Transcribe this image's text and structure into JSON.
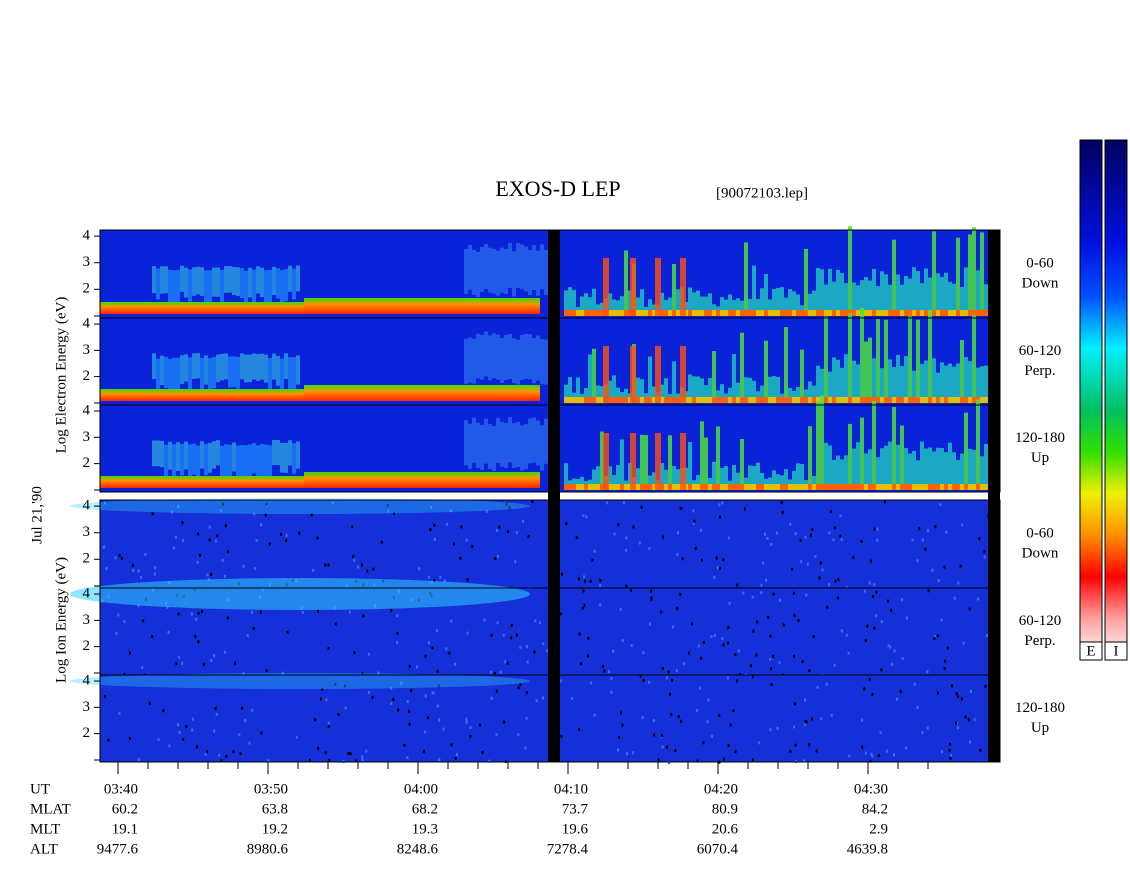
{
  "title": "EXOS-D LEP",
  "file": "[90072103.lep]",
  "date": "Jul 21,'90",
  "electron": {
    "axis_label": "Log Electron Energy (eV)",
    "panels": [
      {
        "range": "0-60",
        "direction": "Down"
      },
      {
        "range": "60-120",
        "direction": "Perp."
      },
      {
        "range": "120-180",
        "direction": "Up"
      }
    ]
  },
  "ion": {
    "axis_label": "Log Ion Energy (eV)",
    "panels": [
      {
        "range": "0-60",
        "direction": "Down"
      },
      {
        "range": "60-120",
        "direction": "Perp."
      },
      {
        "range": "120-180",
        "direction": "Up"
      }
    ]
  },
  "energy_axis": {
    "ylim": [
      0.92,
      4.23
    ],
    "yticks": [
      2,
      3,
      4
    ]
  },
  "time_axis": {
    "labels": [
      "03:40",
      "03:50",
      "04:00",
      "04:10",
      "04:20",
      "04:30"
    ]
  },
  "ephemeris": {
    "rows": [
      {
        "label": "UT"
      },
      {
        "label": "MLAT",
        "values": [
          "60.2",
          "63.8",
          "68.2",
          "73.7",
          "80.9",
          "84.2"
        ]
      },
      {
        "label": "MLT",
        "values": [
          "19.1",
          "19.2",
          "19.3",
          "19.6",
          "20.6",
          "2.9"
        ]
      },
      {
        "label": "ALT",
        "values": [
          "9477.6",
          "8980.6",
          "8248.6",
          "7278.4",
          "6070.4",
          "4639.8"
        ]
      }
    ]
  },
  "colorbar": {
    "labels": [
      "E",
      "I"
    ]
  }
}
